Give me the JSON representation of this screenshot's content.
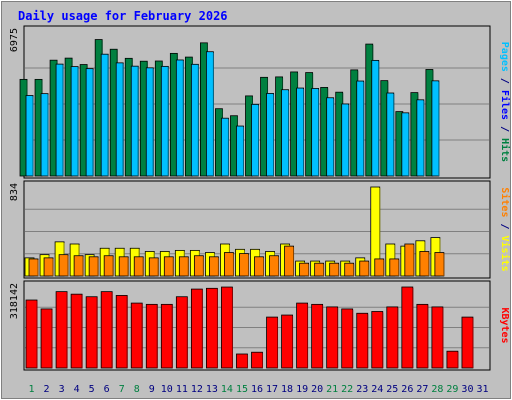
{
  "chart_data": {
    "title": "Daily usage for February 2026",
    "days": [
      "1",
      "2",
      "3",
      "4",
      "5",
      "6",
      "7",
      "8",
      "9",
      "10",
      "11",
      "12",
      "13",
      "14",
      "15",
      "16",
      "17",
      "18",
      "19",
      "20",
      "21",
      "22",
      "23",
      "24",
      "25",
      "26",
      "27",
      "28",
      "29",
      "30",
      "31"
    ],
    "weekend_days": [
      1,
      7,
      8,
      14,
      15,
      21,
      22,
      28,
      29
    ],
    "panels": [
      {
        "type": "bar",
        "ymax_label": "6975",
        "ymax": 6975,
        "legend_parts": [
          {
            "text": "Pages",
            "color": "#00c0ff"
          },
          {
            "text": " / ",
            "color": "#000080"
          },
          {
            "text": "Files",
            "color": "#0000ff"
          },
          {
            "text": " / ",
            "color": "#000080"
          },
          {
            "text": "Hits",
            "color": "#008040"
          }
        ],
        "series": [
          {
            "name": "Hits",
            "color": "#008040",
            "values": [
              4680,
              4680,
              5610,
              5710,
              5400,
              6610,
              6140,
              5700,
              5560,
              5570,
              5940,
              5760,
              6450,
              3260,
              2920,
              3880,
              4780,
              4800,
              5040,
              5010,
              4290,
              4060,
              5140,
              6390,
              4620,
              3120,
              4040,
              5160,
              null,
              null,
              null
            ]
          },
          {
            "name": "Files",
            "color": "#0000ff",
            "values": [
              null,
              null,
              null,
              null,
              null,
              null,
              null,
              null,
              null,
              null,
              null,
              null,
              null,
              null,
              null,
              null,
              null,
              null,
              null,
              null,
              null,
              null,
              null,
              null,
              null,
              null,
              null,
              null,
              null,
              null,
              null
            ]
          },
          {
            "name": "Pages",
            "color": "#00c0ff",
            "values": [
              3900,
              3990,
              5420,
              5300,
              5200,
              5900,
              5480,
              5320,
              5240,
              5310,
              5620,
              5410,
              6020,
              2800,
              2420,
              3470,
              4000,
              4180,
              4260,
              4240,
              3790,
              3490,
              4600,
              5600,
              4020,
              3060,
              3690,
              4610,
              null,
              null,
              null
            ]
          }
        ]
      },
      {
        "type": "bar",
        "ymax_label": "834",
        "ymax": 834,
        "legend_parts": [
          {
            "text": "Sites",
            "color": "#ff8000"
          },
          {
            "text": " / ",
            "color": "#000080"
          },
          {
            "text": "Visits",
            "color": "#ffff00"
          }
        ],
        "series": [
          {
            "name": "Visits",
            "color": "#ffff00",
            "values": [
              170,
              200,
              320,
              300,
              200,
              260,
              260,
              260,
              230,
              230,
              240,
              240,
              220,
              300,
              250,
              250,
              230,
              300,
              140,
              140,
              140,
              140,
              170,
              840,
              300,
              280,
              330,
              360,
              null,
              null,
              null
            ]
          },
          {
            "name": "Sites",
            "color": "#ff8000",
            "values": [
              160,
              170,
              200,
              190,
              180,
              190,
              180,
              180,
              170,
              180,
              180,
              190,
              180,
              220,
              210,
              180,
              190,
              280,
              120,
              120,
              120,
              120,
              140,
              160,
              160,
              300,
              230,
              220,
              null,
              null,
              null
            ]
          }
        ]
      },
      {
        "type": "bar",
        "ymax_label": "318142",
        "ymax": 318142,
        "legend_parts": [
          {
            "text": "KBytes",
            "color": "#ff0000"
          }
        ],
        "series": [
          {
            "name": "KBytes",
            "color": "#ff0000",
            "values": [
              267000,
              232000,
              300000,
              290000,
              280000,
              300000,
              285000,
              255000,
              250000,
              250000,
              280000,
              310000,
              313000,
              318000,
              55000,
              62000,
              200000,
              208000,
              255000,
              250000,
              240000,
              232000,
              215000,
              222000,
              240000,
              325000,
              250000,
              240000,
              66000,
              200000,
              null
            ]
          }
        ]
      }
    ]
  }
}
